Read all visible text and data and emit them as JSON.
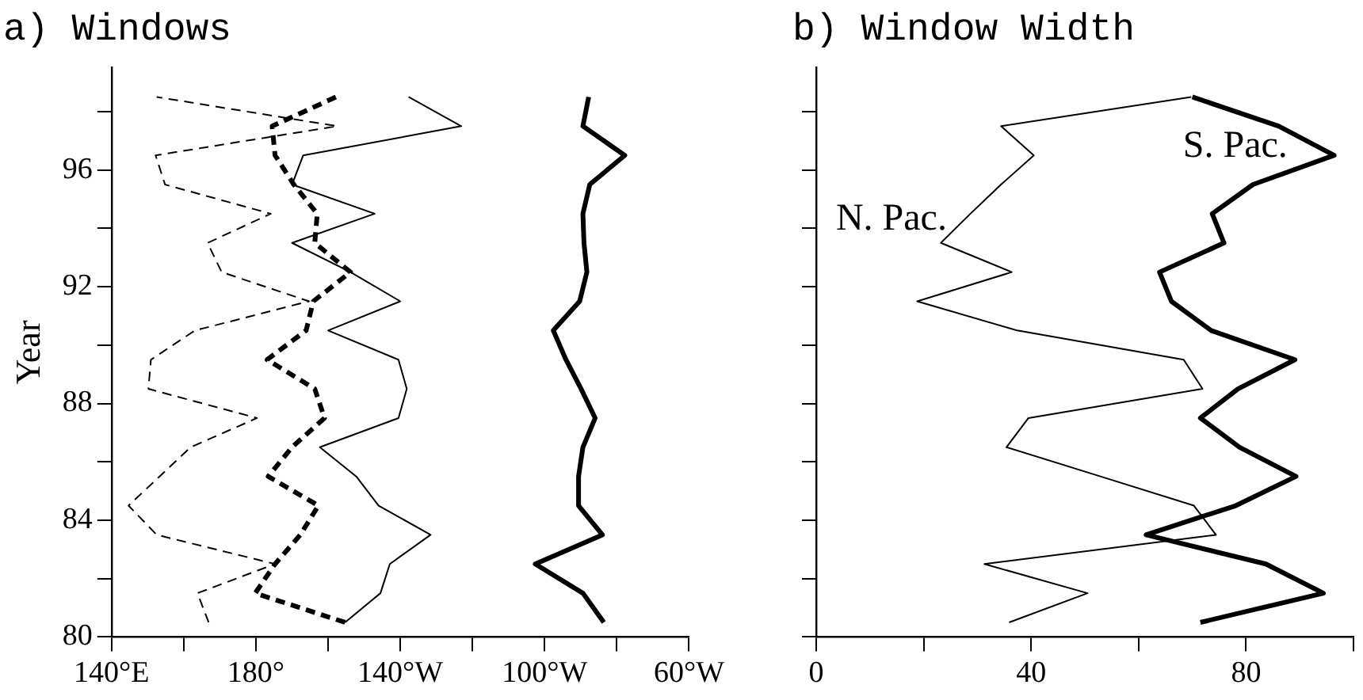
{
  "chart_data": [
    {
      "type": "line",
      "title": "a) Windows",
      "ylabel": "Year",
      "xlim": [
        140,
        300
      ],
      "ylim": [
        80,
        99.5
      ],
      "xticks": [
        {
          "value": 140,
          "label": "140°E"
        },
        {
          "value": 160,
          "label": null
        },
        {
          "value": 180,
          "label": "180°"
        },
        {
          "value": 200,
          "label": null
        },
        {
          "value": 220,
          "label": "140°W"
        },
        {
          "value": 240,
          "label": null
        },
        {
          "value": 260,
          "label": "100°W"
        },
        {
          "value": 280,
          "label": null
        },
        {
          "value": 300,
          "label": "60°W"
        }
      ],
      "yticks": [
        80,
        {
          "value": 82,
          "label": null
        },
        84,
        {
          "value": 86,
          "label": null
        },
        88,
        {
          "value": 90,
          "label": null
        },
        92,
        {
          "value": 94,
          "label": null
        },
        96,
        {
          "value": 98,
          "label": null
        }
      ],
      "series": [
        {
          "color": "#000000",
          "line_style": "dashed",
          "x": [
            166.9,
            163.8,
            185.3,
            152.5,
            144.7,
            153.3,
            161.9,
            180.3,
            150.2,
            150.9,
            163.1,
            194.7,
            170.5,
            166.6,
            184.1,
            154.8,
            152.2,
            202.5,
            152.5
          ],
          "values": [
            80.5,
            81.5,
            82.5,
            83.5,
            84.5,
            85.5,
            86.5,
            87.5,
            88.5,
            89.5,
            90.5,
            91.5,
            92.5,
            93.5,
            94.5,
            95.5,
            96.5,
            97.5,
            98.5
          ]
        },
        {
          "color": "#000000",
          "line_style": "dashed",
          "x": [
            204.7,
            179.8,
            185.3,
            192.3,
            197.3,
            183.4,
            190,
            199,
            196.3,
            183.1,
            193.9,
            195.9,
            206.2,
            196.3,
            197,
            190.5,
            185.3,
            184.5,
            202.2
          ],
          "values": [
            80.5,
            81.5,
            82.5,
            83.5,
            84.5,
            85.5,
            86.5,
            87.5,
            88.5,
            89.5,
            90.5,
            91.5,
            92.5,
            93.5,
            94.5,
            95.5,
            96.5,
            97.5,
            98.5
          ]
        },
        {
          "color": "#000000",
          "line_style": "solid",
          "x": [
            204.7,
            214.5,
            217.1,
            228.4,
            214,
            207.8,
            197.7,
            219.5,
            221.8,
            219.5,
            200,
            220,
            206.2,
            190,
            212.9,
            190,
            193.1,
            236.9,
            222.3
          ],
          "values": [
            80.5,
            81.5,
            82.5,
            83.5,
            84.5,
            85.5,
            86.5,
            87.5,
            88.5,
            89.5,
            90.5,
            91.5,
            92.5,
            93.5,
            94.5,
            95.5,
            96.5,
            97.5,
            98.5
          ]
        },
        {
          "color": "#000000",
          "line_style": "solid",
          "x": [
            276.4,
            270.6,
            257.4,
            276,
            269.4,
            269.4,
            270.6,
            274,
            270.1,
            265.9,
            262.4,
            269.7,
            271.7,
            270.9,
            270.6,
            272.5,
            282.2,
            270.6,
            272.2
          ],
          "values": [
            80.5,
            81.5,
            82.5,
            83.5,
            84.5,
            85.5,
            86.5,
            87.5,
            88.5,
            89.5,
            90.5,
            91.5,
            92.5,
            93.5,
            94.5,
            95.5,
            96.5,
            97.5,
            98.5
          ]
        }
      ]
    },
    {
      "type": "line",
      "title": "b) Window Width",
      "xlim": [
        0,
        100
      ],
      "ylim": [
        80,
        99.5
      ],
      "tick_labels": "x",
      "xticks": [
        0,
        {
          "value": 20,
          "label": null
        },
        40,
        {
          "value": 60,
          "label": null
        },
        80,
        {
          "value": 100,
          "label": null
        }
      ],
      "yticks": [
        80,
        {
          "value": 82,
          "label": null
        },
        84,
        {
          "value": 86,
          "label": null
        },
        88,
        {
          "value": 90,
          "label": null
        },
        92,
        {
          "value": 94,
          "label": null
        },
        96,
        {
          "value": 98,
          "label": null
        }
      ],
      "series": [
        {
          "name": "N. Pac.",
          "color": "#000000",
          "line_style": "solid",
          "x": [
            35.9,
            50.5,
            31.3,
            74.4,
            70.3,
            52.9,
            35.4,
            39.5,
            71.9,
            68.4,
            37.4,
            18.8,
            36.4,
            23.2,
            28.7,
            34.4,
            40.5,
            34.4,
            69.8
          ],
          "values": [
            80.5,
            81.5,
            82.5,
            83.5,
            84.5,
            85.5,
            86.5,
            87.5,
            88.5,
            89.5,
            90.5,
            91.5,
            92.5,
            93.5,
            94.5,
            95.5,
            96.5,
            97.5,
            98.5
          ]
        },
        {
          "name": "S. Pac.",
          "color": "#000000",
          "line_style": "solid",
          "x": [
            71.5,
            94.4,
            83.7,
            61.4,
            78.1,
            89.3,
            78.8,
            71.5,
            78.5,
            89.1,
            73.5,
            66.1,
            63.9,
            75.9,
            73.7,
            81.3,
            96.4,
            86.1,
            70
          ],
          "values": [
            80.5,
            81.5,
            82.5,
            83.5,
            84.5,
            85.5,
            86.5,
            87.5,
            88.5,
            89.5,
            90.5,
            91.5,
            92.5,
            93.5,
            94.5,
            95.5,
            96.5,
            97.5,
            98.5
          ]
        }
      ]
    }
  ]
}
